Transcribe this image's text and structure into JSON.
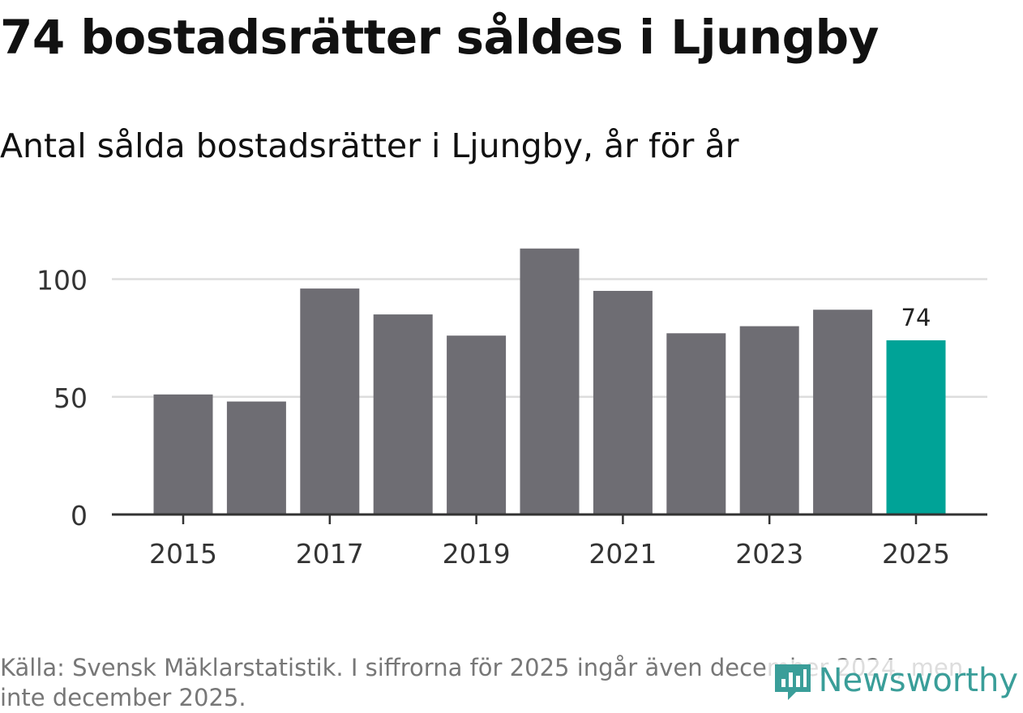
{
  "title": "74 bostadsrätter såldes i Ljungby",
  "subtitle": "Antal sålda bostadsrätter i Ljungby, år för år",
  "source": "Källa: Svensk Mäklarstatistik. I siffrorna för 2025 ingår även december 2024, men inte december 2025.",
  "logo": {
    "text": "Newsworthy",
    "icon": "newsworthy-logo-icon"
  },
  "colors": {
    "bar": "#6e6d73",
    "highlight": "#00a397",
    "grid": "#dddddd",
    "axis": "#333333"
  },
  "chart_data": {
    "type": "bar",
    "categories": [
      "2015",
      "2016",
      "2017",
      "2018",
      "2019",
      "2020",
      "2021",
      "2022",
      "2023",
      "2024",
      "2025"
    ],
    "values": [
      51,
      48,
      96,
      85,
      76,
      113,
      95,
      77,
      80,
      87,
      74
    ],
    "highlight_index": 10,
    "data_labels": [
      {
        "index": 10,
        "text": "74"
      }
    ],
    "x_tick_labels": [
      "2015",
      "2017",
      "2019",
      "2021",
      "2023",
      "2025"
    ],
    "y_ticks": [
      0,
      50,
      100
    ],
    "y_tick_labels": [
      "0",
      "50",
      "100"
    ],
    "ylim": [
      0,
      120
    ],
    "grid": true,
    "xlabel": "",
    "ylabel": "",
    "title": "74 bostadsrätter såldes i Ljungby"
  }
}
